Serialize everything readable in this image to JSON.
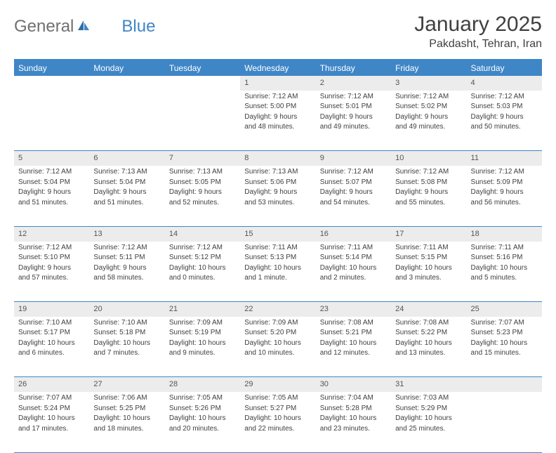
{
  "logo": {
    "textGeneral": "General",
    "textBlue": "Blue"
  },
  "title": "January 2025",
  "location": "Pakdasht, Tehran, Iran",
  "colors": {
    "headerBg": "#3f86c7",
    "headerText": "#ffffff",
    "dayNumBg": "#ececec",
    "bodyText": "#404040",
    "logoGray": "#707070",
    "logoBlue": "#3f86c7",
    "pageBg": "#ffffff",
    "rowBorder": "#3f86c7"
  },
  "weekdays": [
    "Sunday",
    "Monday",
    "Tuesday",
    "Wednesday",
    "Thursday",
    "Friday",
    "Saturday"
  ],
  "weeks": [
    [
      null,
      null,
      null,
      {
        "n": "1",
        "sr": "Sunrise: 7:12 AM",
        "ss": "Sunset: 5:00 PM",
        "d1": "Daylight: 9 hours",
        "d2": "and 48 minutes."
      },
      {
        "n": "2",
        "sr": "Sunrise: 7:12 AM",
        "ss": "Sunset: 5:01 PM",
        "d1": "Daylight: 9 hours",
        "d2": "and 49 minutes."
      },
      {
        "n": "3",
        "sr": "Sunrise: 7:12 AM",
        "ss": "Sunset: 5:02 PM",
        "d1": "Daylight: 9 hours",
        "d2": "and 49 minutes."
      },
      {
        "n": "4",
        "sr": "Sunrise: 7:12 AM",
        "ss": "Sunset: 5:03 PM",
        "d1": "Daylight: 9 hours",
        "d2": "and 50 minutes."
      }
    ],
    [
      {
        "n": "5",
        "sr": "Sunrise: 7:12 AM",
        "ss": "Sunset: 5:04 PM",
        "d1": "Daylight: 9 hours",
        "d2": "and 51 minutes."
      },
      {
        "n": "6",
        "sr": "Sunrise: 7:13 AM",
        "ss": "Sunset: 5:04 PM",
        "d1": "Daylight: 9 hours",
        "d2": "and 51 minutes."
      },
      {
        "n": "7",
        "sr": "Sunrise: 7:13 AM",
        "ss": "Sunset: 5:05 PM",
        "d1": "Daylight: 9 hours",
        "d2": "and 52 minutes."
      },
      {
        "n": "8",
        "sr": "Sunrise: 7:13 AM",
        "ss": "Sunset: 5:06 PM",
        "d1": "Daylight: 9 hours",
        "d2": "and 53 minutes."
      },
      {
        "n": "9",
        "sr": "Sunrise: 7:12 AM",
        "ss": "Sunset: 5:07 PM",
        "d1": "Daylight: 9 hours",
        "d2": "and 54 minutes."
      },
      {
        "n": "10",
        "sr": "Sunrise: 7:12 AM",
        "ss": "Sunset: 5:08 PM",
        "d1": "Daylight: 9 hours",
        "d2": "and 55 minutes."
      },
      {
        "n": "11",
        "sr": "Sunrise: 7:12 AM",
        "ss": "Sunset: 5:09 PM",
        "d1": "Daylight: 9 hours",
        "d2": "and 56 minutes."
      }
    ],
    [
      {
        "n": "12",
        "sr": "Sunrise: 7:12 AM",
        "ss": "Sunset: 5:10 PM",
        "d1": "Daylight: 9 hours",
        "d2": "and 57 minutes."
      },
      {
        "n": "13",
        "sr": "Sunrise: 7:12 AM",
        "ss": "Sunset: 5:11 PM",
        "d1": "Daylight: 9 hours",
        "d2": "and 58 minutes."
      },
      {
        "n": "14",
        "sr": "Sunrise: 7:12 AM",
        "ss": "Sunset: 5:12 PM",
        "d1": "Daylight: 10 hours",
        "d2": "and 0 minutes."
      },
      {
        "n": "15",
        "sr": "Sunrise: 7:11 AM",
        "ss": "Sunset: 5:13 PM",
        "d1": "Daylight: 10 hours",
        "d2": "and 1 minute."
      },
      {
        "n": "16",
        "sr": "Sunrise: 7:11 AM",
        "ss": "Sunset: 5:14 PM",
        "d1": "Daylight: 10 hours",
        "d2": "and 2 minutes."
      },
      {
        "n": "17",
        "sr": "Sunrise: 7:11 AM",
        "ss": "Sunset: 5:15 PM",
        "d1": "Daylight: 10 hours",
        "d2": "and 3 minutes."
      },
      {
        "n": "18",
        "sr": "Sunrise: 7:11 AM",
        "ss": "Sunset: 5:16 PM",
        "d1": "Daylight: 10 hours",
        "d2": "and 5 minutes."
      }
    ],
    [
      {
        "n": "19",
        "sr": "Sunrise: 7:10 AM",
        "ss": "Sunset: 5:17 PM",
        "d1": "Daylight: 10 hours",
        "d2": "and 6 minutes."
      },
      {
        "n": "20",
        "sr": "Sunrise: 7:10 AM",
        "ss": "Sunset: 5:18 PM",
        "d1": "Daylight: 10 hours",
        "d2": "and 7 minutes."
      },
      {
        "n": "21",
        "sr": "Sunrise: 7:09 AM",
        "ss": "Sunset: 5:19 PM",
        "d1": "Daylight: 10 hours",
        "d2": "and 9 minutes."
      },
      {
        "n": "22",
        "sr": "Sunrise: 7:09 AM",
        "ss": "Sunset: 5:20 PM",
        "d1": "Daylight: 10 hours",
        "d2": "and 10 minutes."
      },
      {
        "n": "23",
        "sr": "Sunrise: 7:08 AM",
        "ss": "Sunset: 5:21 PM",
        "d1": "Daylight: 10 hours",
        "d2": "and 12 minutes."
      },
      {
        "n": "24",
        "sr": "Sunrise: 7:08 AM",
        "ss": "Sunset: 5:22 PM",
        "d1": "Daylight: 10 hours",
        "d2": "and 13 minutes."
      },
      {
        "n": "25",
        "sr": "Sunrise: 7:07 AM",
        "ss": "Sunset: 5:23 PM",
        "d1": "Daylight: 10 hours",
        "d2": "and 15 minutes."
      }
    ],
    [
      {
        "n": "26",
        "sr": "Sunrise: 7:07 AM",
        "ss": "Sunset: 5:24 PM",
        "d1": "Daylight: 10 hours",
        "d2": "and 17 minutes."
      },
      {
        "n": "27",
        "sr": "Sunrise: 7:06 AM",
        "ss": "Sunset: 5:25 PM",
        "d1": "Daylight: 10 hours",
        "d2": "and 18 minutes."
      },
      {
        "n": "28",
        "sr": "Sunrise: 7:05 AM",
        "ss": "Sunset: 5:26 PM",
        "d1": "Daylight: 10 hours",
        "d2": "and 20 minutes."
      },
      {
        "n": "29",
        "sr": "Sunrise: 7:05 AM",
        "ss": "Sunset: 5:27 PM",
        "d1": "Daylight: 10 hours",
        "d2": "and 22 minutes."
      },
      {
        "n": "30",
        "sr": "Sunrise: 7:04 AM",
        "ss": "Sunset: 5:28 PM",
        "d1": "Daylight: 10 hours",
        "d2": "and 23 minutes."
      },
      {
        "n": "31",
        "sr": "Sunrise: 7:03 AM",
        "ss": "Sunset: 5:29 PM",
        "d1": "Daylight: 10 hours",
        "d2": "and 25 minutes."
      },
      null
    ]
  ]
}
